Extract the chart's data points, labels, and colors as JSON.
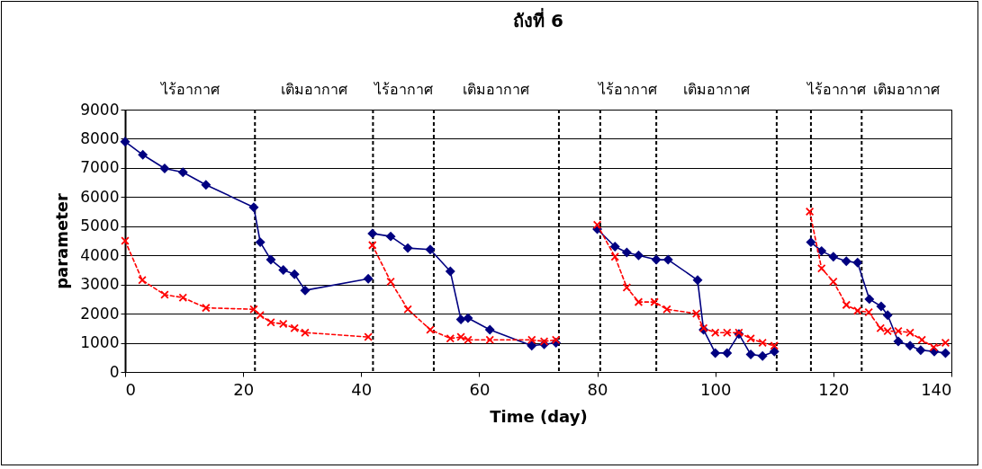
{
  "chart_data": {
    "type": "line",
    "title": "ถังที่ 6",
    "xlabel": "Time (day)",
    "ylabel": "parameter",
    "xlim": [
      0,
      140
    ],
    "xticks": [
      0,
      20,
      40,
      60,
      80,
      100,
      120,
      140
    ],
    "ylim": [
      0,
      9000
    ],
    "yticks": [
      0,
      1000,
      2000,
      3000,
      4000,
      5000,
      6000,
      7000,
      8000,
      9000
    ],
    "grid": "y",
    "series": [
      {
        "color": "#000080",
        "marker": "diamond",
        "line_style": "solid",
        "x": [
          0,
          3,
          6.7,
          9.8,
          13.7,
          21.8,
          22.9,
          24.7,
          26.8,
          28.7,
          30.5,
          41.2
        ],
        "values": [
          7900,
          7450,
          6980,
          6850,
          6420,
          5650,
          4450,
          3850,
          3500,
          3350,
          2800,
          3200
        ]
      },
      {
        "color": "#ff0000",
        "marker": "cross",
        "line_style": "dashed",
        "x": [
          0,
          2.9,
          6.7,
          9.8,
          13.7,
          21.8,
          22.9,
          24.7,
          26.8,
          28.7,
          30.5,
          41.2
        ],
        "values": [
          4500,
          3150,
          2650,
          2550,
          2200,
          2150,
          1950,
          1700,
          1650,
          1500,
          1350,
          1200
        ]
      },
      {
        "color": "#000080",
        "marker": "diamond",
        "line_style": "solid",
        "x": [
          41.9,
          45,
          47.9,
          51.7,
          55.1,
          56.9,
          58.1,
          61.8,
          68.9,
          71,
          73
        ],
        "values": [
          4750,
          4650,
          4250,
          4200,
          3450,
          1800,
          1850,
          1450,
          900,
          950,
          1000
        ]
      },
      {
        "color": "#ff0000",
        "marker": "cross",
        "line_style": "dashed",
        "x": [
          41.9,
          45,
          47.9,
          51.7,
          55.1,
          56.9,
          58.1,
          61.8,
          68.9,
          71,
          73
        ],
        "values": [
          4350,
          3100,
          2150,
          1450,
          1150,
          1200,
          1100,
          1100,
          1100,
          1050,
          1100
        ]
      },
      {
        "color": "#000080",
        "marker": "diamond",
        "line_style": "solid",
        "x": [
          80,
          83,
          85,
          87,
          90,
          92,
          97,
          98,
          100,
          102,
          104,
          106,
          108,
          110
        ],
        "values": [
          4900,
          4300,
          4100,
          4000,
          3850,
          3850,
          3150,
          1450,
          650,
          650,
          1300,
          600,
          550,
          700
        ]
      },
      {
        "color": "#ff0000",
        "marker": "cross",
        "line_style": "dashed",
        "x": [
          80,
          83,
          85,
          87,
          89.7,
          91.8,
          96.8,
          98,
          100,
          102,
          104,
          106,
          108,
          110
        ],
        "values": [
          5050,
          3950,
          2900,
          2400,
          2400,
          2150,
          2000,
          1500,
          1350,
          1350,
          1350,
          1150,
          1000,
          900
        ]
      },
      {
        "color": "#000080",
        "marker": "diamond",
        "line_style": "solid",
        "x": [
          116.2,
          118,
          120,
          122.2,
          124.1,
          126.1,
          128.1,
          129.2,
          131,
          133,
          134.8,
          137.1,
          139
        ],
        "values": [
          4450,
          4150,
          3950,
          3800,
          3750,
          2500,
          2250,
          1950,
          1050,
          900,
          750,
          700,
          650
        ]
      },
      {
        "color": "#ff0000",
        "marker": "cross",
        "line_style": "dashed",
        "x": [
          116,
          118,
          120,
          122.2,
          124.1,
          126,
          128,
          129.2,
          131,
          133,
          135,
          137,
          139
        ],
        "values": [
          5500,
          3550,
          3100,
          2300,
          2100,
          2050,
          1500,
          1400,
          1400,
          1350,
          1100,
          850,
          1000
        ]
      }
    ],
    "ref_lines": [
      {
        "axis": "x",
        "value": 22,
        "color": "#000000",
        "line_style": "dashed"
      },
      {
        "axis": "x",
        "value": 42,
        "color": "#000000",
        "line_style": "dashed"
      },
      {
        "axis": "x",
        "value": 52.3,
        "color": "#000000",
        "line_style": "dashed"
      },
      {
        "axis": "x",
        "value": 73.5,
        "color": "#000000",
        "line_style": "dashed"
      },
      {
        "axis": "x",
        "value": 80.5,
        "color": "#000000",
        "line_style": "dashed"
      },
      {
        "axis": "x",
        "value": 90,
        "color": "#000000",
        "line_style": "dashed"
      },
      {
        "axis": "x",
        "value": 110.4,
        "color": "#000000",
        "line_style": "dashed"
      },
      {
        "axis": "x",
        "value": 116.2,
        "color": "#000000",
        "line_style": "dashed"
      },
      {
        "axis": "x",
        "value": 124.8,
        "color": "#000000",
        "line_style": "dashed"
      }
    ],
    "annotations": [
      "ไร้อากาศ",
      "เติมอากาศ",
      "ไร้อากาศ",
      "เติมอากาศ",
      "ไร้อากาศ",
      "เติมอากาศ",
      "ไร้อากาศ",
      "เติมอากาศ"
    ]
  }
}
